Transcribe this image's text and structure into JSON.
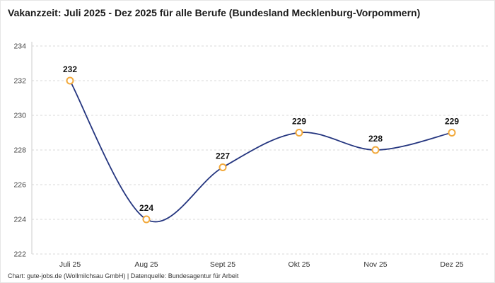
{
  "title": "Vakanzzeit: Juli 2025 - Dez 2025 für alle Berufe (Bundesland Mecklenburg-Vorpommern)",
  "footer": "Chart: gute-jobs.de (Wollmilchsau GmbH) | Datenquelle: Bundesagentur für Arbeit",
  "colors": {
    "line": "#24357f",
    "marker_fill": "#ffffff",
    "marker_stroke": "#f2a93b",
    "grid": "#d9d9d9",
    "axis": "#cccccc",
    "value_label": "#111111",
    "tick_label": "#444444",
    "x_label": "#333333"
  },
  "chart_data": {
    "type": "line",
    "title": "Vakanzzeit: Juli 2025 - Dez 2025 für alle Berufe (Bundesland Mecklenburg-Vorpommern)",
    "categories": [
      "Juli 25",
      "Aug 25",
      "Sept 25",
      "Okt 25",
      "Nov 25",
      "Dez 25"
    ],
    "values": [
      232,
      224,
      227,
      229,
      228,
      229
    ],
    "point_labels": [
      "232",
      "224",
      "227",
      "229",
      "228",
      "229"
    ],
    "xlabel": "",
    "ylabel": "",
    "ylim": [
      222,
      234
    ],
    "yticks": [
      222,
      224,
      226,
      228,
      230,
      232,
      234
    ],
    "grid": "dashed-horizontal",
    "legend": "none"
  }
}
